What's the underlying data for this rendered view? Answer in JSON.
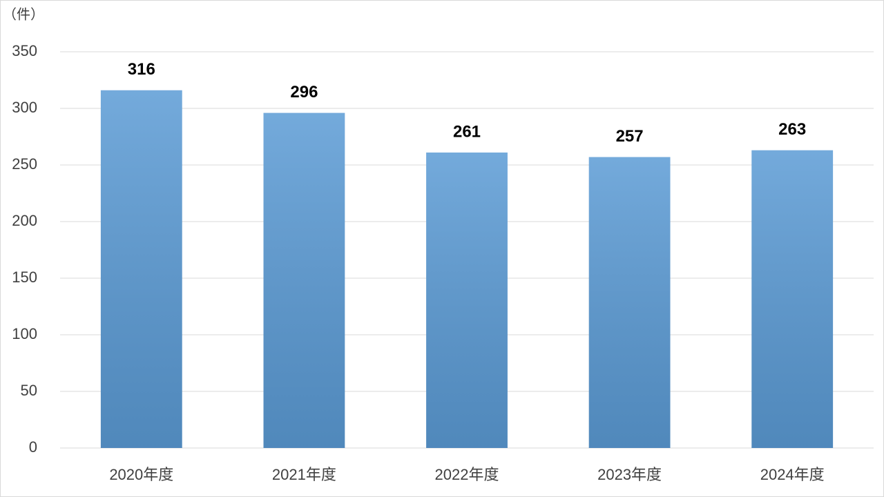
{
  "chart_data": {
    "type": "bar",
    "y_label": "（件）",
    "categories": [
      "2020年度",
      "2021年度",
      "2022年度",
      "2023年度",
      "2024年度"
    ],
    "values": [
      316,
      296,
      261,
      257,
      263
    ],
    "color": "#5b9bd5",
    "ylim": [
      0,
      350
    ],
    "yticks": [
      0,
      50,
      100,
      150,
      200,
      250,
      300,
      350
    ],
    "grid": true
  }
}
